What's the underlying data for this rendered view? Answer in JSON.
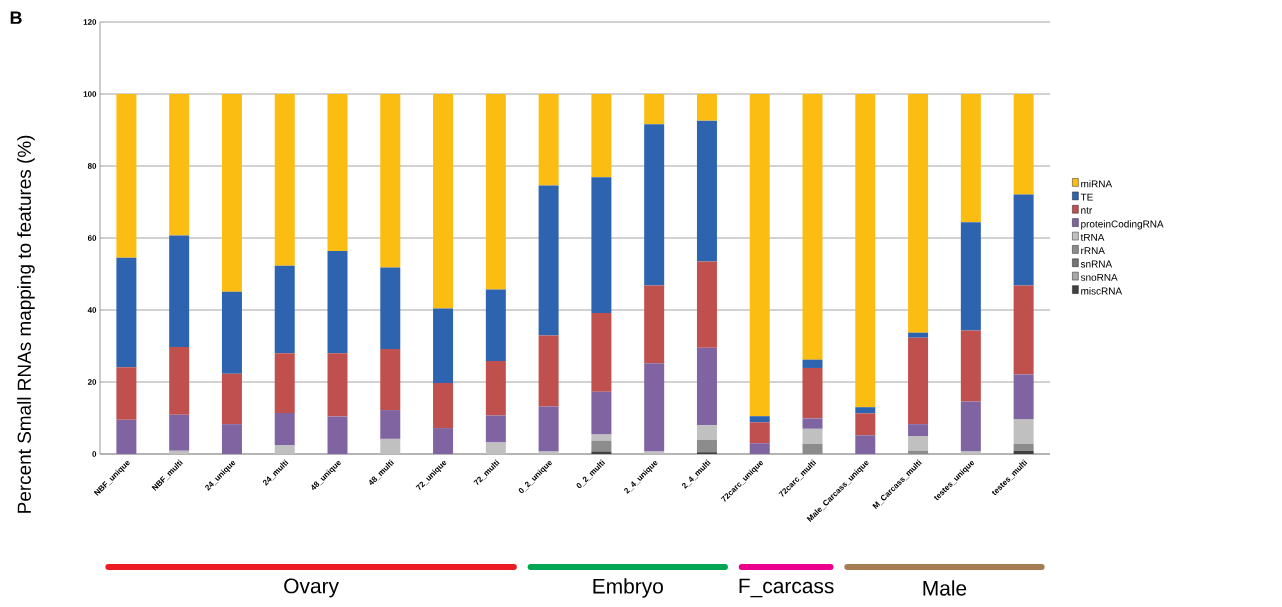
{
  "chart_data": {
    "type": "bar",
    "stacked": true,
    "ylabel": "Percent Small RNAs mapping to features  (%)",
    "annotations": [
      "B",
      "Ovary",
      "Embryo",
      "F_carcass",
      "Male"
    ],
    "categories": [
      "NBF_unique",
      "NBF_multi",
      "24_unique",
      "24_multi",
      "48_unique",
      "48_multi",
      "72_unique",
      "72_multi",
      "0_2_unique",
      "0_2_multi",
      "2_4_unique",
      "2_4_multi",
      "72carc_unique",
      "72carc_multi",
      "Male_Carcass_unique",
      "M_Carcass_multi",
      "testes_unique",
      "testes_multi"
    ],
    "ylim": [
      0,
      120
    ],
    "yticks": [
      0,
      20,
      40,
      60,
      80,
      100,
      120
    ],
    "grid": "y",
    "legend": "right",
    "series": [
      {
        "name": "miscRNA",
        "color": "#404040",
        "values": [
          0,
          0,
          0,
          0,
          0,
          0,
          0,
          0,
          0,
          0.7,
          0,
          0.5,
          0,
          0,
          0,
          0,
          0,
          0.9
        ]
      },
      {
        "name": "snoRNA",
        "color": "#a6a6a6",
        "values": [
          0,
          0,
          0,
          0,
          0,
          0,
          0,
          0,
          0,
          0,
          0,
          0,
          0,
          0,
          0,
          0,
          0,
          0
        ]
      },
      {
        "name": "snRNA",
        "color": "#737373",
        "values": [
          0,
          0,
          0,
          0,
          0,
          0,
          0,
          0,
          0,
          0,
          0,
          0,
          0,
          0,
          0,
          0,
          0,
          0
        ]
      },
      {
        "name": "rRNA",
        "color": "#8c8c8c",
        "values": [
          0,
          0,
          0,
          0,
          0,
          0,
          0,
          0,
          0,
          3.0,
          0,
          3.4,
          0,
          2.8,
          0,
          0.9,
          0,
          1.9
        ]
      },
      {
        "name": "tRNA",
        "color": "#c0c0c0",
        "values": [
          0,
          0.9,
          0,
          2.5,
          0,
          4.2,
          0,
          3.2,
          0.7,
          1.7,
          0.7,
          4.1,
          0,
          4.2,
          0,
          4.1,
          0.7,
          6.8
        ]
      },
      {
        "name": "proteinCodingRNA",
        "color": "#8064a2",
        "values": [
          9.5,
          10.0,
          8.3,
          8.9,
          10.4,
          8.0,
          7.2,
          7.5,
          12.5,
          11.9,
          24.5,
          21.5,
          3.0,
          2.9,
          5.2,
          3.3,
          13.9,
          12.5
        ]
      },
      {
        "name": "ntr",
        "color": "#c0504d",
        "values": [
          14.6,
          18.8,
          14.0,
          16.6,
          17.6,
          17.0,
          12.5,
          15.1,
          19.7,
          21.9,
          21.6,
          24.0,
          5.8,
          14.0,
          6.1,
          24.0,
          19.7,
          24.7
        ]
      },
      {
        "name": "TE",
        "color": "#2e63b0",
        "values": [
          30.4,
          31.0,
          22.8,
          24.3,
          28.4,
          22.6,
          20.7,
          19.9,
          41.7,
          37.7,
          44.8,
          39.1,
          1.7,
          2.3,
          1.7,
          1.4,
          30.1,
          25.3
        ]
      },
      {
        "name": "miRNA",
        "color": "#fbbd12",
        "values": [
          45.5,
          39.3,
          54.9,
          47.7,
          43.6,
          48.2,
          59.6,
          54.3,
          25.4,
          23.1,
          8.4,
          7.4,
          89.5,
          73.8,
          87.0,
          66.3,
          35.6,
          27.9
        ]
      }
    ]
  }
}
